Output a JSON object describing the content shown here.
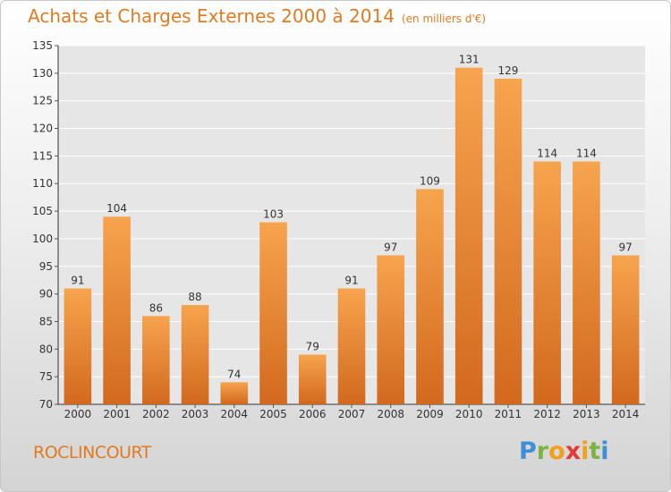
{
  "header": {
    "title": "Achats et Charges Externes 2000 à 2014",
    "unit": "(en milliers d'€)"
  },
  "footer": {
    "place": "ROCLINCOURT",
    "logo_letters": [
      "P",
      "r",
      "o",
      "x",
      "i",
      "t",
      "i"
    ],
    "logo_colors": [
      "#3d8fd6",
      "#7cb342",
      "#f0a019",
      "#e53935",
      "#f0a019",
      "#7cb342",
      "#3d8fd6"
    ]
  },
  "colors": {
    "bar_light": "#f7a44e",
    "bar_dark": "#d2691e",
    "title": "#e07b22"
  },
  "chart_data": {
    "type": "bar",
    "title": "Achats et Charges Externes 2000 à 2014",
    "subtitle": "(en milliers d'€)",
    "xlabel": "",
    "ylabel": "",
    "ylim": [
      70,
      135
    ],
    "yticks": [
      70,
      75,
      80,
      85,
      90,
      95,
      100,
      105,
      110,
      115,
      120,
      125,
      130,
      135
    ],
    "grid": true,
    "categories": [
      "2000",
      "2001",
      "2002",
      "2003",
      "2004",
      "2005",
      "2006",
      "2007",
      "2008",
      "2009",
      "2010",
      "2011",
      "2012",
      "2013",
      "2014"
    ],
    "values": [
      91,
      104,
      86,
      88,
      74,
      103,
      79,
      91,
      97,
      109,
      131,
      129,
      114,
      114,
      97
    ]
  }
}
